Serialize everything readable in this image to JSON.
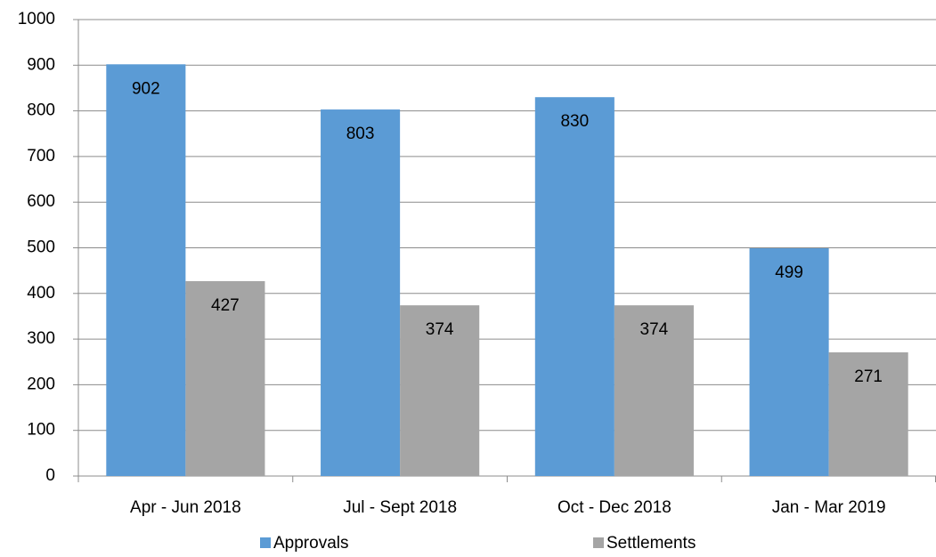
{
  "chart_data": {
    "type": "bar",
    "categories": [
      "Apr - Jun 2018",
      "Jul - Sept 2018",
      "Oct - Dec 2018",
      "Jan - Mar 2019"
    ],
    "series": [
      {
        "name": "Approvals",
        "color": "#5b9bd5",
        "values": [
          902,
          803,
          830,
          499
        ]
      },
      {
        "name": "Settlements",
        "color": "#a5a5a5",
        "values": [
          427,
          374,
          374,
          271
        ]
      }
    ],
    "ylim": [
      0,
      1000
    ],
    "yticks": [
      0,
      100,
      200,
      300,
      400,
      500,
      600,
      700,
      800,
      900,
      1000
    ],
    "grid": true,
    "legend": "bottom"
  }
}
